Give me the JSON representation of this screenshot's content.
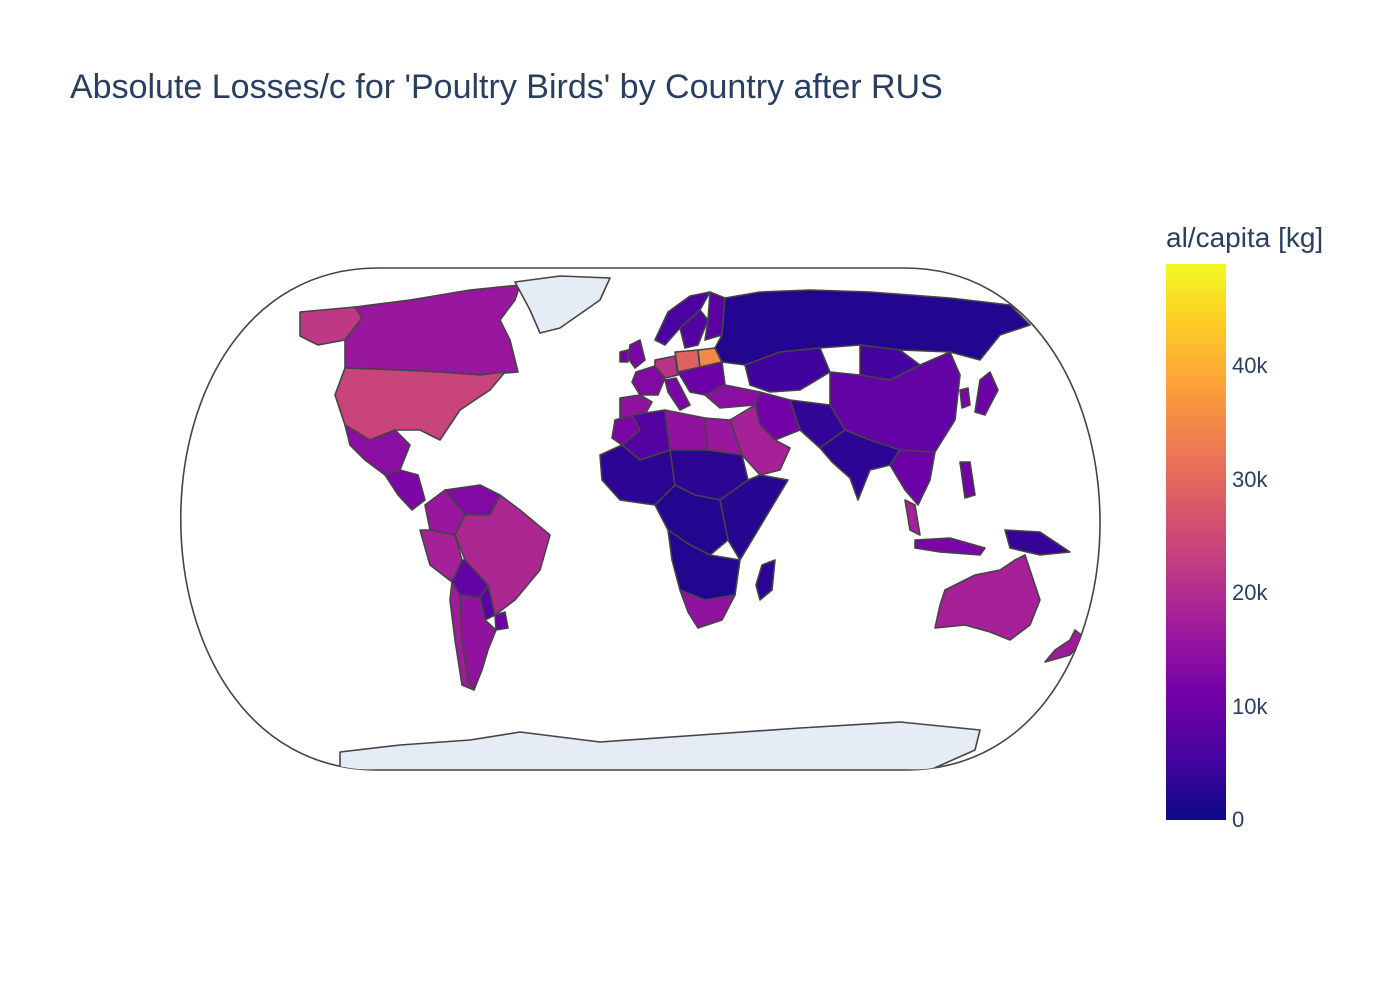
{
  "title": "Absolute Losses/c for 'Poultry Birds' by Country after RUS",
  "colorbar": {
    "title": "al/capita [kg]",
    "range": [
      0,
      49000
    ],
    "ticks": [
      {
        "label": "0",
        "value": 0
      },
      {
        "label": "10k",
        "value": 10000
      },
      {
        "label": "20k",
        "value": 20000
      },
      {
        "label": "30k",
        "value": 30000
      },
      {
        "label": "40k",
        "value": 40000
      }
    ],
    "colorscale": [
      "#0d0887",
      "#46039f",
      "#7201a8",
      "#9c179e",
      "#bd3786",
      "#d8576b",
      "#ed7953",
      "#fb9f3a",
      "#fdca26",
      "#f0f921"
    ]
  },
  "map": {
    "projection": "natural-earth",
    "land_color": "#e5ecf6",
    "border_color": "#444444",
    "regions": [
      {
        "code": "USA",
        "value": 24000
      },
      {
        "code": "CAN",
        "value": 16000
      },
      {
        "code": "ALK",
        "value": 22000
      },
      {
        "code": "GRL"
      },
      {
        "code": "MEX",
        "value": 14000
      },
      {
        "code": "CAM",
        "value": 12000
      },
      {
        "code": "COL",
        "value": 16000
      },
      {
        "code": "VEN",
        "value": 13000
      },
      {
        "code": "PER",
        "value": 18000
      },
      {
        "code": "BRA",
        "value": 19000
      },
      {
        "code": "BOL",
        "value": 9000
      },
      {
        "code": "PRY",
        "value": 8000
      },
      {
        "code": "ARG",
        "value": 15000
      },
      {
        "code": "CHL",
        "value": 17000
      },
      {
        "code": "URY",
        "value": 10000
      },
      {
        "code": "NOR",
        "value": 6000
      },
      {
        "code": "SWE",
        "value": 7000
      },
      {
        "code": "FIN",
        "value": 8000
      },
      {
        "code": "GBR",
        "value": 12000
      },
      {
        "code": "IRL",
        "value": 11000
      },
      {
        "code": "FRA",
        "value": 13000
      },
      {
        "code": "ESP",
        "value": 15000
      },
      {
        "code": "DEU",
        "value": 21000
      },
      {
        "code": "POL",
        "value": 29000
      },
      {
        "code": "UKR",
        "value": 35000
      },
      {
        "code": "ITA",
        "value": 12000
      },
      {
        "code": "BLK",
        "value": 10000
      },
      {
        "code": "TUR",
        "value": 14000
      },
      {
        "code": "RUS",
        "value": 2000
      },
      {
        "code": "KAZ",
        "value": 5000
      },
      {
        "code": "MNG",
        "value": 5500
      },
      {
        "code": "CHN",
        "value": 9000
      },
      {
        "code": "IND",
        "value": 3000
      },
      {
        "code": "PAK",
        "value": 3500
      },
      {
        "code": "IRN",
        "value": 11000
      },
      {
        "code": "SAU",
        "value": 18000
      },
      {
        "code": "EGY",
        "value": 16000
      },
      {
        "code": "LBY",
        "value": 15000
      },
      {
        "code": "DZA",
        "value": 7000
      },
      {
        "code": "MAR",
        "value": 12000
      },
      {
        "code": "WAF",
        "value": 3000
      },
      {
        "code": "SAH",
        "value": 3000
      },
      {
        "code": "CAF",
        "value": 2000
      },
      {
        "code": "EAF",
        "value": 2500
      },
      {
        "code": "AGO",
        "value": 2000
      },
      {
        "code": "ZAF",
        "value": 15000
      },
      {
        "code": "MDG",
        "value": 3000
      },
      {
        "code": "SEA",
        "value": 10000
      },
      {
        "code": "MYS",
        "value": 18000
      },
      {
        "code": "IDN",
        "value": 12000
      },
      {
        "code": "PHL",
        "value": 11000
      },
      {
        "code": "PNG",
        "value": 4000
      },
      {
        "code": "JPN",
        "value": 10000
      },
      {
        "code": "KOR",
        "value": 12000
      },
      {
        "code": "AUS",
        "value": 18000
      },
      {
        "code": "NZL",
        "value": 17000
      },
      {
        "code": "ATA"
      }
    ]
  }
}
